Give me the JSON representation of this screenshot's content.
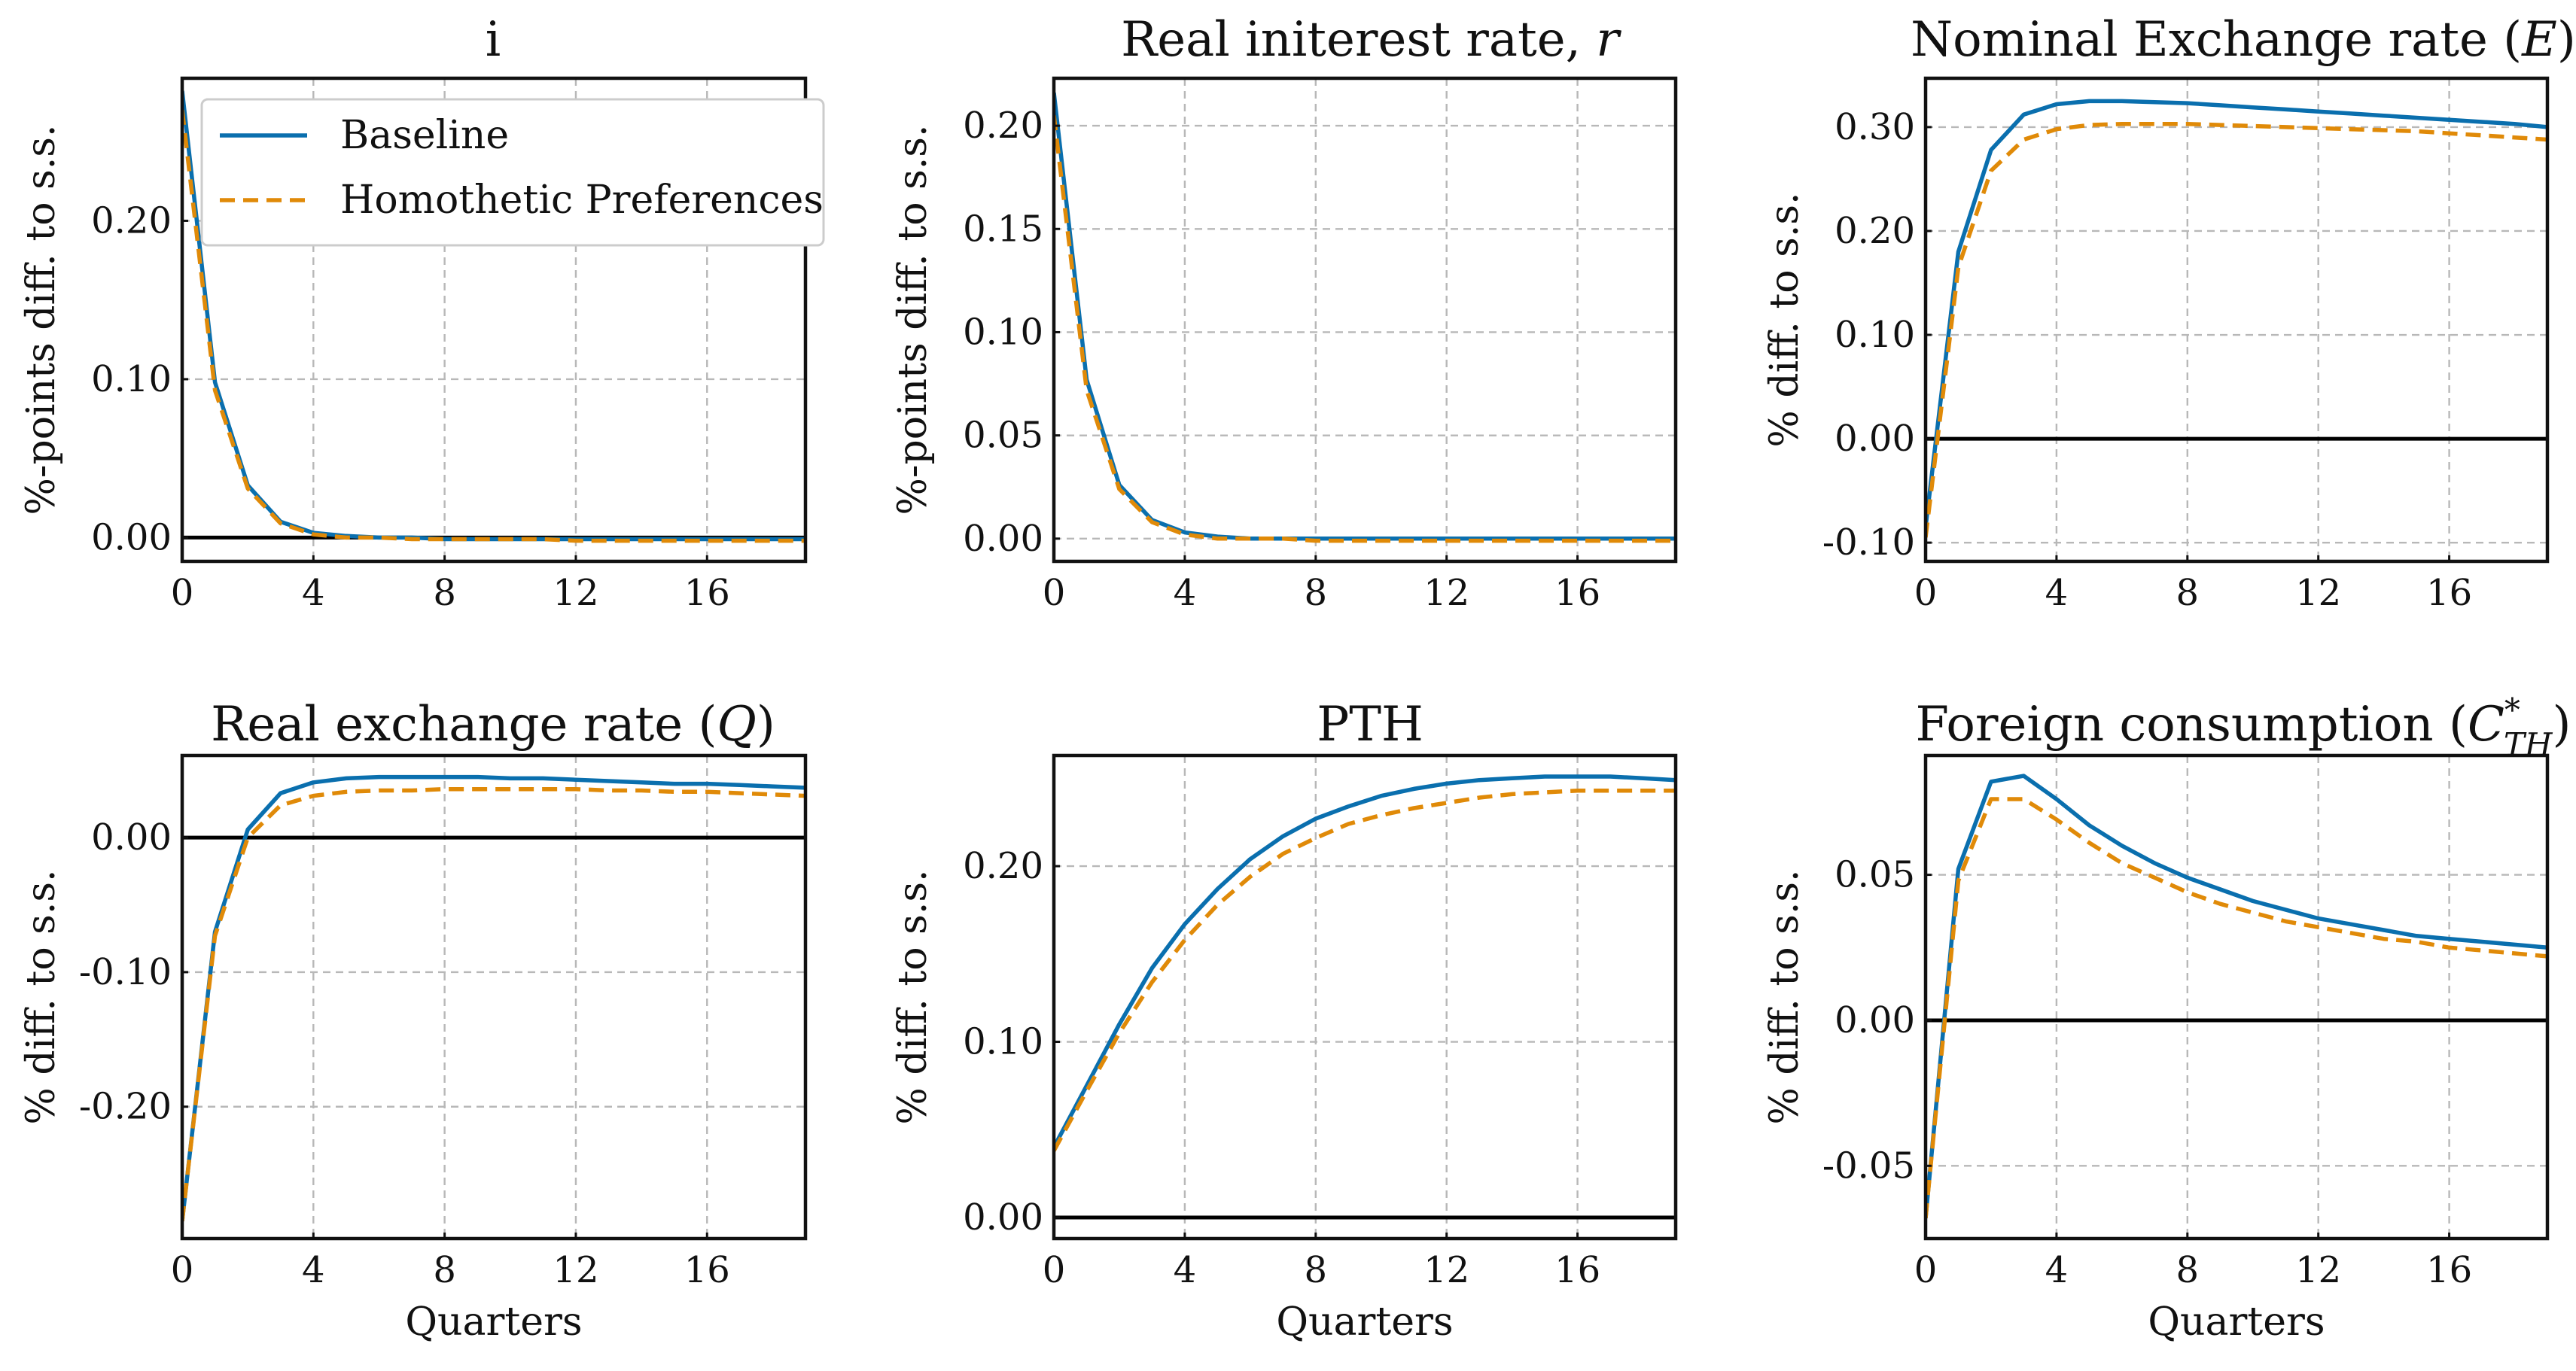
{
  "figure": {
    "legend": {
      "baseline": "Baseline",
      "homothetic": "Homothetic Preferences"
    },
    "colors": {
      "baseline": "#0a6fae",
      "homothetic": "#e08a08",
      "zero_line": "#000000",
      "grid": "#b8b8b8"
    }
  },
  "chart_data": [
    {
      "type": "line",
      "title": "i",
      "xlabel": "",
      "ylabel": "%-points diff. to s.s.",
      "xlim": [
        0,
        19
      ],
      "ylim": [
        -0.015,
        0.29
      ],
      "xticks": [
        0,
        4,
        8,
        12,
        16
      ],
      "yticks": [
        0.0,
        0.1,
        0.2
      ],
      "ytick_labels": [
        "0.00",
        "0.10",
        "0.20"
      ],
      "zero_line": true,
      "grid": true,
      "legend": "top-right",
      "x": [
        0,
        1,
        2,
        3,
        4,
        5,
        6,
        7,
        8,
        9,
        10,
        11,
        12,
        13,
        14,
        15,
        16,
        17,
        18,
        19
      ],
      "series": [
        {
          "name": "Baseline",
          "values": [
            0.282,
            0.098,
            0.033,
            0.01,
            0.003,
            0.001,
            0.0,
            0.0,
            -0.001,
            -0.001,
            -0.001,
            -0.001,
            -0.001,
            -0.001,
            -0.001,
            -0.001,
            -0.001,
            -0.001,
            -0.001,
            -0.001
          ]
        },
        {
          "name": "Homothetic Preferences",
          "values": [
            0.27,
            0.093,
            0.031,
            0.009,
            0.002,
            0.0,
            0.0,
            -0.001,
            -0.001,
            -0.001,
            -0.001,
            -0.001,
            -0.002,
            -0.002,
            -0.002,
            -0.002,
            -0.002,
            -0.002,
            -0.002,
            -0.002
          ]
        }
      ]
    },
    {
      "type": "line",
      "title": "Real initerest rate, r",
      "xlabel": "",
      "ylabel": "%-points diff. to s.s.",
      "xlim": [
        0,
        19
      ],
      "ylim": [
        -0.011,
        0.223
      ],
      "xticks": [
        0,
        4,
        8,
        12,
        16
      ],
      "yticks": [
        0.0,
        0.05,
        0.1,
        0.15,
        0.2
      ],
      "ytick_labels": [
        "0.00",
        "0.05",
        "0.10",
        "0.15",
        "0.20"
      ],
      "zero_line": false,
      "grid": true,
      "x": [
        0,
        1,
        2,
        3,
        4,
        5,
        6,
        7,
        8,
        9,
        10,
        11,
        12,
        13,
        14,
        15,
        16,
        17,
        18,
        19
      ],
      "series": [
        {
          "name": "Baseline",
          "values": [
            0.216,
            0.077,
            0.026,
            0.009,
            0.003,
            0.001,
            0.0,
            0.0,
            0.0,
            0.0,
            0.0,
            0.0,
            0.0,
            0.0,
            0.0,
            0.0,
            0.0,
            0.0,
            0.0,
            0.0
          ]
        },
        {
          "name": "Homothetic Preferences",
          "values": [
            0.205,
            0.072,
            0.024,
            0.008,
            0.002,
            0.0,
            0.0,
            0.0,
            -0.001,
            -0.001,
            -0.001,
            -0.001,
            -0.001,
            -0.001,
            -0.001,
            -0.001,
            -0.001,
            -0.001,
            -0.001,
            -0.001
          ]
        }
      ]
    },
    {
      "type": "line",
      "title": "Nominal Exchange rate (E)",
      "xlabel": "",
      "ylabel": "% diff. to s.s.",
      "xlim": [
        0,
        19
      ],
      "ylim": [
        -0.118,
        0.347
      ],
      "xticks": [
        0,
        4,
        8,
        12,
        16
      ],
      "yticks": [
        -0.1,
        0.0,
        0.1,
        0.2,
        0.3
      ],
      "ytick_labels": [
        "-0.10",
        "0.00",
        "0.10",
        "0.20",
        "0.30"
      ],
      "zero_line": true,
      "grid": true,
      "x": [
        0,
        1,
        2,
        3,
        4,
        5,
        6,
        7,
        8,
        9,
        10,
        11,
        12,
        13,
        14,
        15,
        16,
        17,
        18,
        19
      ],
      "series": [
        {
          "name": "Baseline",
          "values": [
            -0.085,
            0.18,
            0.278,
            0.312,
            0.322,
            0.325,
            0.325,
            0.324,
            0.323,
            0.321,
            0.319,
            0.317,
            0.315,
            0.313,
            0.311,
            0.309,
            0.307,
            0.305,
            0.303,
            0.3
          ]
        },
        {
          "name": "Homothetic Preferences",
          "values": [
            -0.095,
            0.165,
            0.258,
            0.288,
            0.298,
            0.302,
            0.303,
            0.303,
            0.303,
            0.302,
            0.301,
            0.3,
            0.299,
            0.298,
            0.297,
            0.296,
            0.294,
            0.292,
            0.29,
            0.288
          ]
        }
      ]
    },
    {
      "type": "line",
      "title": "Real exchange rate (Q)",
      "xlabel": "Quarters",
      "ylabel": "% diff. to s.s.",
      "xlim": [
        0,
        19
      ],
      "ylim": [
        -0.298,
        0.061
      ],
      "xticks": [
        0,
        4,
        8,
        12,
        16
      ],
      "yticks": [
        -0.2,
        -0.1,
        0.0
      ],
      "ytick_labels": [
        "-0.20",
        "-0.10",
        "0.00"
      ],
      "zero_line": true,
      "grid": true,
      "x": [
        0,
        1,
        2,
        3,
        4,
        5,
        6,
        7,
        8,
        9,
        10,
        11,
        12,
        13,
        14,
        15,
        16,
        17,
        18,
        19
      ],
      "series": [
        {
          "name": "Baseline",
          "values": [
            -0.285,
            -0.07,
            0.006,
            0.033,
            0.041,
            0.044,
            0.045,
            0.045,
            0.045,
            0.045,
            0.044,
            0.044,
            0.043,
            0.042,
            0.041,
            0.04,
            0.04,
            0.039,
            0.038,
            0.037
          ]
        },
        {
          "name": "Homothetic Preferences",
          "values": [
            -0.285,
            -0.073,
            0.0,
            0.024,
            0.031,
            0.034,
            0.035,
            0.035,
            0.036,
            0.036,
            0.036,
            0.036,
            0.036,
            0.035,
            0.035,
            0.034,
            0.034,
            0.033,
            0.032,
            0.031
          ]
        }
      ]
    },
    {
      "type": "line",
      "title": "PTH",
      "xlabel": "Quarters",
      "ylabel": "% diff. to s.s.",
      "xlim": [
        0,
        19
      ],
      "ylim": [
        -0.012,
        0.263
      ],
      "xticks": [
        0,
        4,
        8,
        12,
        16
      ],
      "yticks": [
        0.0,
        0.1,
        0.2
      ],
      "ytick_labels": [
        "0.00",
        "0.10",
        "0.20"
      ],
      "zero_line": true,
      "grid": true,
      "x": [
        0,
        1,
        2,
        3,
        4,
        5,
        6,
        7,
        8,
        9,
        10,
        11,
        12,
        13,
        14,
        15,
        16,
        17,
        18,
        19
      ],
      "series": [
        {
          "name": "Baseline",
          "values": [
            0.04,
            0.075,
            0.11,
            0.142,
            0.167,
            0.187,
            0.204,
            0.217,
            0.227,
            0.234,
            0.24,
            0.244,
            0.247,
            0.249,
            0.25,
            0.251,
            0.251,
            0.251,
            0.25,
            0.249
          ]
        },
        {
          "name": "Homothetic Preferences",
          "values": [
            0.038,
            0.072,
            0.105,
            0.134,
            0.158,
            0.178,
            0.194,
            0.207,
            0.216,
            0.224,
            0.229,
            0.233,
            0.236,
            0.239,
            0.241,
            0.242,
            0.243,
            0.243,
            0.243,
            0.243
          ]
        }
      ]
    },
    {
      "type": "line",
      "title": "Foreign consumption (C*TH)",
      "xlabel": "Quarters",
      "ylabel": "% diff. to s.s.",
      "xlim": [
        0,
        19
      ],
      "ylim": [
        -0.075,
        0.091
      ],
      "xticks": [
        0,
        4,
        8,
        12,
        16
      ],
      "yticks": [
        -0.05,
        0.0,
        0.05
      ],
      "ytick_labels": [
        "-0.05",
        "0.00",
        "0.05"
      ],
      "zero_line": true,
      "grid": true,
      "x": [
        0,
        1,
        2,
        3,
        4,
        5,
        6,
        7,
        8,
        9,
        10,
        11,
        12,
        13,
        14,
        15,
        16,
        17,
        18,
        19
      ],
      "series": [
        {
          "name": "Baseline",
          "values": [
            -0.068,
            0.052,
            0.082,
            0.084,
            0.076,
            0.067,
            0.06,
            0.054,
            0.049,
            0.045,
            0.041,
            0.038,
            0.035,
            0.033,
            0.031,
            0.029,
            0.028,
            0.027,
            0.026,
            0.025
          ]
        },
        {
          "name": "Homothetic Preferences",
          "values": [
            -0.068,
            0.048,
            0.076,
            0.076,
            0.069,
            0.061,
            0.054,
            0.049,
            0.044,
            0.04,
            0.037,
            0.034,
            0.032,
            0.03,
            0.028,
            0.027,
            0.025,
            0.024,
            0.023,
            0.022
          ]
        }
      ]
    }
  ]
}
